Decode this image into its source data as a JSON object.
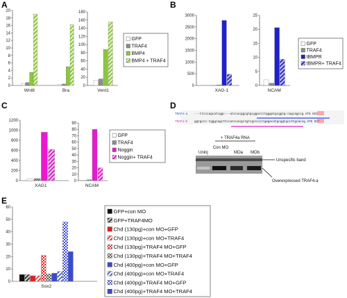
{
  "colors": {
    "white": "#ffffff",
    "gray": "#888888",
    "green": "#8cc63f",
    "green_hatch": "#9acd32",
    "blue": "#2020cc",
    "blue_hatch": "#3030bb",
    "magenta": "#e81ad0",
    "red": "#e02020",
    "pink": "#ff80a0",
    "navy": "#3a4ad0",
    "black": "#111111",
    "dark": "#555555"
  },
  "panels": {
    "A": {
      "label": "A"
    },
    "B": {
      "label": "B"
    },
    "C": {
      "label": "C"
    },
    "D": {
      "label": "D"
    },
    "E": {
      "label": "E"
    }
  },
  "chart_data": [
    {
      "id": "A1",
      "type": "bar",
      "panel": "A",
      "categories": [
        "Wnt8",
        "Bra"
      ],
      "ylim": [
        0,
        20
      ],
      "yticks": [
        0,
        2,
        4,
        6,
        8,
        10,
        12,
        14,
        16,
        18,
        20
      ],
      "series": [
        {
          "name": "GFP",
          "style": "white",
          "values": [
            0.5,
            0.3
          ]
        },
        {
          "name": "TRAF4",
          "style": "gray",
          "values": [
            0.8,
            0.4
          ]
        },
        {
          "name": "BMP4",
          "style": "green",
          "values": [
            3.5,
            5.0
          ]
        },
        {
          "name": "BMP4 + TRAF4",
          "style": "green_hatch",
          "values": [
            19.0,
            16.2
          ]
        }
      ]
    },
    {
      "id": "A2",
      "type": "bar",
      "panel": "A",
      "categories": [
        "Vent1"
      ],
      "ylim": [
        0,
        180
      ],
      "yticks": [
        0,
        20,
        40,
        60,
        80,
        100,
        120,
        140,
        160,
        180
      ],
      "series": [
        {
          "name": "GFP",
          "style": "white",
          "values": [
            12
          ]
        },
        {
          "name": "TRAF4",
          "style": "gray",
          "values": [
            16
          ]
        },
        {
          "name": "BMP4",
          "style": "green",
          "values": [
            88
          ]
        },
        {
          "name": "BMP4 + TRAF4",
          "style": "green_hatch",
          "values": [
            155
          ]
        }
      ]
    },
    {
      "id": "B1",
      "type": "bar",
      "panel": "B",
      "categories": [
        "XAG-1"
      ],
      "ylim": [
        0,
        3000
      ],
      "yticks": [
        0,
        500,
        1000,
        1500,
        2000,
        2500,
        3000
      ],
      "series": [
        {
          "name": "GFP",
          "style": "white",
          "values": [
            15
          ]
        },
        {
          "name": "TRAF4",
          "style": "gray",
          "values": [
            25
          ]
        },
        {
          "name": "tBMPR",
          "style": "blue",
          "values": [
            2780
          ]
        },
        {
          "name": "tBMPR+ TRAF4",
          "style": "blue_hatch",
          "values": [
            480
          ]
        }
      ]
    },
    {
      "id": "B2",
      "type": "bar",
      "panel": "B",
      "categories": [
        "NCAM"
      ],
      "ylim": [
        0,
        25
      ],
      "yticks": [
        0,
        5,
        10,
        15,
        20,
        25
      ],
      "series": [
        {
          "name": "GFP",
          "style": "white",
          "values": [
            2
          ]
        },
        {
          "name": "TRAF4",
          "style": "gray",
          "values": [
            0.8
          ]
        },
        {
          "name": "tBMPR",
          "style": "blue",
          "values": [
            20.6
          ]
        },
        {
          "name": "tBMPR+ TRAF4",
          "style": "blue_hatch",
          "values": [
            9.3
          ]
        }
      ]
    },
    {
      "id": "C1",
      "type": "bar",
      "panel": "C",
      "categories": [
        "XAG1"
      ],
      "ylim": [
        0,
        1200
      ],
      "yticks": [
        0,
        200,
        400,
        600,
        800,
        1000,
        1200
      ],
      "series": [
        {
          "name": "GFP",
          "style": "white",
          "values": [
            30
          ]
        },
        {
          "name": "TRAF4",
          "style": "gray",
          "values": [
            40
          ]
        },
        {
          "name": "Noggin",
          "style": "magenta",
          "values": [
            960
          ]
        },
        {
          "name": "Noggin+ TRAF4",
          "style": "magenta_hatch",
          "values": [
            620
          ]
        }
      ]
    },
    {
      "id": "C2",
      "type": "bar",
      "panel": "C",
      "categories": [
        "NCAM"
      ],
      "ylim": [
        0,
        90
      ],
      "yticks": [
        0,
        10,
        20,
        30,
        40,
        50,
        60,
        70,
        80,
        90
      ],
      "series": [
        {
          "name": "GFP",
          "style": "white",
          "values": [
            0.5
          ]
        },
        {
          "name": "TRAF4",
          "style": "gray",
          "values": [
            1.5
          ]
        },
        {
          "name": "Noggin",
          "style": "magenta",
          "values": [
            80
          ]
        },
        {
          "name": "Noggin+ TRAF4",
          "style": "magenta_hatch",
          "values": [
            20
          ]
        }
      ]
    },
    {
      "id": "E",
      "type": "bar",
      "panel": "E",
      "categories": [
        "Sox2"
      ],
      "ylim": [
        0,
        60
      ],
      "yticks": [
        0,
        10,
        20,
        30,
        40,
        50,
        60
      ],
      "series": [
        {
          "name": "GFP+con MO",
          "style": "black",
          "values": [
            5.5
          ]
        },
        {
          "name": "GFP+TRAF4MO",
          "style": "dark_hatch",
          "values": [
            5.5
          ]
        },
        {
          "name": "Chd (130pg)+con MO+GFP",
          "style": "red",
          "values": [
            4.5
          ]
        },
        {
          "name": "Chd (130pg)+con MO+TRAF4",
          "style": "red_hatch",
          "values": [
            4.5
          ]
        },
        {
          "name": "Chd (130pg)+TRAF4 MO+GFP",
          "style": "red_check",
          "values": [
            21
          ]
        },
        {
          "name": "Chd (130pg)+TRAF4 MO+TRAF4",
          "style": "dark_check",
          "values": [
            6
          ]
        },
        {
          "name": "Chd (400pg)+con MO+GFP",
          "style": "navy",
          "values": [
            6.5
          ]
        },
        {
          "name": "Chd (400pg)+con MO+TRAF4",
          "style": "navy_hatch",
          "values": [
            8
          ]
        },
        {
          "name": "Chd (400pg)+TRAF4 MO+GFP",
          "style": "navy_check",
          "values": [
            48
          ]
        },
        {
          "name": "Chd (400pg)+TRAF4 MO+TRAF4",
          "style": "navy",
          "values": [
            24
          ]
        }
      ]
    }
  ],
  "panel_d": {
    "seq_top_label": "TRAF4-a",
    "seq_bottom_label": "TRAF4-b",
    "seq_top": "---ttcccagcatcggc---atccacggcgtgcggaccttgggatgcggtg-cagcagccg  ATG  GCC",
    "seq_bottom": "ggtgccc-tgggcagcttccatccacgctgtcgccccctgagacatgcggtgccttgcaccg  ATG  GCT",
    "rna_label": "+ TRAF4a RNA",
    "lanes": [
      "Uninj",
      "Con MO",
      "MOa",
      "MOb"
    ],
    "band_top_label": "Unspecific band",
    "band_bottom_label": "Overexpressed TRAF4-a"
  }
}
